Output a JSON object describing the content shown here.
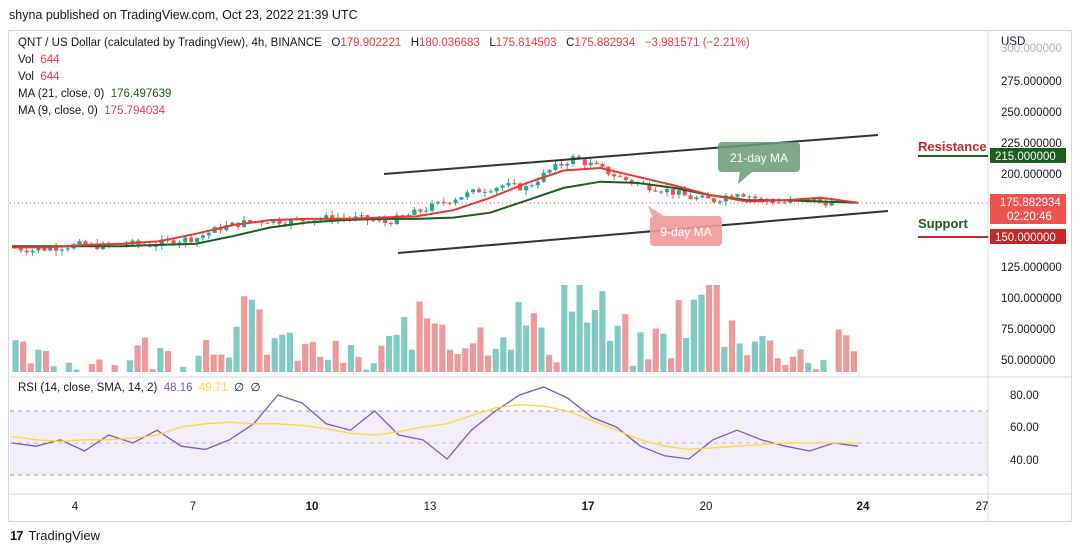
{
  "header": {
    "publisher": "shyna published on TradingView.com, Oct 23, 2022 21:39 UTC"
  },
  "legend": {
    "symbol": "QNT / US Dollar (calculated by TradingView), 4h, BINANCE",
    "o_label": "O",
    "o_value": "179.902221",
    "h_label": "H",
    "h_value": "180.036683",
    "l_label": "L",
    "l_value": "175.814503",
    "c_label": "C",
    "c_value": "175.882934",
    "change": "−3.981571 (−2.21%)",
    "vol_label_1": "Vol",
    "vol_value_1": "644",
    "vol_label_2": "Vol",
    "vol_value_2": "644",
    "ma21_label": "MA (21, close, 0)",
    "ma21_value": "176.497639",
    "ma9_label": "MA (9, close, 0)",
    "ma9_value": "175.794034",
    "rsi_label": "RSI (14, close, SMA, 14, 2)",
    "rsi_value": "48.16",
    "rsi_sma_value": "49.71",
    "rsi_extra_1": "∅",
    "rsi_extra_2": "∅"
  },
  "price_axis": {
    "currency": "USD",
    "ticks": [
      "300.000000",
      "275.000000",
      "250.000000",
      "225.000000",
      "200.000000",
      "125.000000",
      "100.000000",
      "75.000000",
      "50.000000"
    ],
    "current_price": "175.882934",
    "countdown": "02:20:46",
    "resistance_value": "215.000000",
    "support_value": "150.000000"
  },
  "rsi_axis": {
    "ticks": [
      "80.00",
      "60.00",
      "40.00"
    ]
  },
  "time_axis": {
    "ticks": [
      "4",
      "7",
      "10",
      "13",
      "17",
      "20",
      "24",
      "27"
    ]
  },
  "annotations": {
    "resistance": "Resistance",
    "support": "Support",
    "ma21_callout": "21-day MA",
    "ma9_callout": "9-day MA"
  },
  "colors": {
    "up": "#26a69a",
    "down": "#ef5350",
    "ma21": "#1b5e20",
    "ma9": "#e53935",
    "resistance_line": "#1b5e20",
    "support_line": "#c62828",
    "rsi": "#7e57c2",
    "rsi_sma": "#fdd835"
  },
  "footer": {
    "brand": "TradingView",
    "logo": "17"
  },
  "chart_data": {
    "type": "candlestick",
    "title": "QNT / US Dollar (calculated by TradingView), 4h, BINANCE",
    "x_ticks": [
      "4",
      "7",
      "10",
      "13",
      "17",
      "20",
      "24",
      "27"
    ],
    "y_ticks": [
      300,
      275,
      250,
      225,
      200,
      125,
      100,
      75,
      50
    ],
    "price_path_close": [
      140,
      138,
      140,
      142,
      141,
      143,
      142,
      145,
      148,
      156,
      160,
      162,
      161,
      163,
      164,
      163,
      160,
      166,
      173,
      180,
      186,
      190,
      188,
      202,
      212,
      205,
      196,
      190,
      186,
      180,
      178,
      185,
      178,
      176,
      179,
      176
    ],
    "ma21_path": [
      141,
      141,
      141,
      141,
      142,
      143,
      149,
      156,
      160,
      162,
      163,
      163,
      164,
      168,
      178,
      188,
      193,
      192,
      188,
      182,
      178,
      178,
      177,
      176
    ],
    "ma9_path": [
      140,
      140,
      142,
      143,
      145,
      151,
      158,
      162,
      163,
      163,
      164,
      165,
      170,
      180,
      192,
      202,
      204,
      197,
      190,
      182,
      177,
      178,
      180,
      176
    ],
    "resistance_channel": [
      [
        0,
        183
      ],
      [
        1,
        230
      ]
    ],
    "support_channel": [
      [
        0,
        134
      ],
      [
        1,
        170
      ]
    ],
    "levels": {
      "resistance": 215,
      "support": 150,
      "current": 175.882934
    },
    "rsi_ticks": [
      80,
      60,
      40
    ],
    "rsi_series": [
      50,
      48,
      52,
      45,
      55,
      50,
      58,
      48,
      46,
      52,
      62,
      80,
      75,
      62,
      58,
      70,
      55,
      52,
      40,
      58,
      70,
      80,
      85,
      78,
      66,
      60,
      48,
      42,
      40,
      52,
      58,
      52,
      48,
      45,
      50,
      48
    ],
    "rsi_sma_series": [
      54,
      52,
      51,
      52,
      52,
      53,
      55,
      60,
      62,
      63,
      62,
      62,
      61,
      59,
      56,
      55,
      57,
      60,
      62,
      67,
      72,
      74,
      73,
      70,
      64,
      58,
      52,
      48,
      46,
      47,
      48,
      49,
      50,
      50,
      50,
      50
    ],
    "volume_values": [
      55,
      50,
      48,
      52,
      45,
      60,
      55,
      52,
      65,
      72,
      85,
      70,
      60,
      58,
      55,
      48,
      62,
      80,
      88,
      70,
      72,
      78,
      85,
      65,
      110,
      90,
      72,
      60,
      68,
      88,
      108,
      78,
      70,
      60,
      58,
      48,
      62
    ]
  }
}
